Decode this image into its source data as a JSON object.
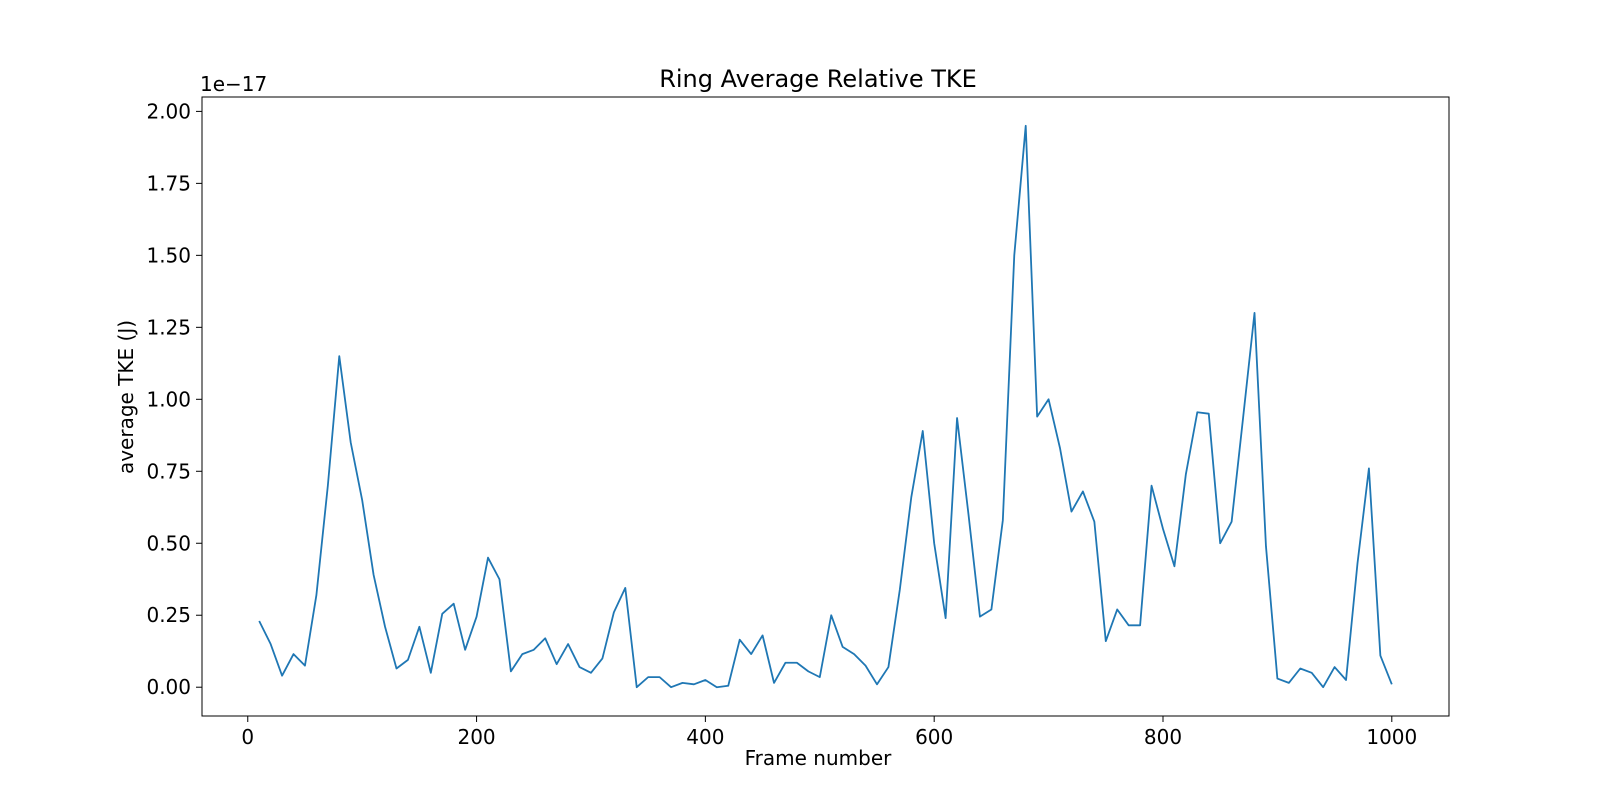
{
  "chart_data": {
    "type": "line",
    "title": "Ring Average Relative TKE",
    "xlabel": "Frame number",
    "ylabel": "average TKE (J)",
    "y_offset_label": "1e−17",
    "y_scale_note": "values shown in units of 1e-17",
    "xlim": [
      -40,
      1050
    ],
    "ylim": [
      -0.1,
      2.05
    ],
    "x_ticks": [
      0,
      200,
      400,
      600,
      800,
      1000
    ],
    "x_tick_labels": [
      "0",
      "200",
      "400",
      "600",
      "800",
      "1000"
    ],
    "y_ticks": [
      0.0,
      0.25,
      0.5,
      0.75,
      1.0,
      1.25,
      1.5,
      1.75,
      2.0
    ],
    "y_tick_labels": [
      "0.00",
      "0.25",
      "0.50",
      "0.75",
      "1.00",
      "1.25",
      "1.50",
      "1.75",
      "2.00"
    ],
    "grid": false,
    "line_color": "#1f77b4",
    "series": [
      {
        "x": [
          10,
          20,
          30,
          40,
          50,
          60,
          70,
          80,
          90,
          100,
          110,
          120,
          130,
          140,
          150,
          160,
          170,
          180,
          190,
          200,
          210,
          220,
          230,
          240,
          250,
          260,
          270,
          280,
          290,
          300,
          310,
          320,
          330,
          340,
          350,
          360,
          370,
          380,
          390,
          400,
          410,
          420,
          430,
          440,
          450,
          460,
          470,
          480,
          490,
          500,
          510,
          520,
          530,
          540,
          550,
          560,
          570,
          580,
          590,
          600,
          610,
          620,
          630,
          640,
          650,
          660,
          670,
          680,
          690,
          700,
          710,
          720,
          730,
          740,
          750,
          760,
          770,
          780,
          790,
          800,
          810,
          820,
          830,
          840,
          850,
          860,
          870,
          880,
          890,
          900,
          910,
          920,
          930,
          940,
          950,
          960,
          970,
          980,
          990,
          1000
        ],
        "y": [
          0.23,
          0.15,
          0.04,
          0.115,
          0.075,
          0.32,
          0.7,
          1.15,
          0.85,
          0.65,
          0.39,
          0.21,
          0.065,
          0.095,
          0.21,
          0.05,
          0.255,
          0.29,
          0.13,
          0.245,
          0.45,
          0.375,
          0.055,
          0.115,
          0.13,
          0.17,
          0.08,
          0.15,
          0.07,
          0.05,
          0.1,
          0.26,
          0.345,
          0.0,
          0.035,
          0.035,
          0.0,
          0.015,
          0.01,
          0.025,
          0.0,
          0.005,
          0.165,
          0.115,
          0.18,
          0.015,
          0.085,
          0.085,
          0.055,
          0.035,
          0.25,
          0.14,
          0.115,
          0.075,
          0.01,
          0.07,
          0.34,
          0.66,
          0.89,
          0.5,
          0.24,
          0.935,
          0.6,
          0.245,
          0.27,
          0.58,
          1.5,
          1.95,
          0.94,
          1.0,
          0.83,
          0.61,
          0.68,
          0.575,
          0.16,
          0.27,
          0.215,
          0.215,
          0.7,
          0.55,
          0.42,
          0.74,
          0.955,
          0.95,
          0.5,
          0.575,
          0.935,
          1.3,
          0.49,
          0.03,
          0.015,
          0.065,
          0.05,
          0.0,
          0.07,
          0.025,
          0.43,
          0.76,
          0.11,
          0.01
        ]
      }
    ]
  }
}
